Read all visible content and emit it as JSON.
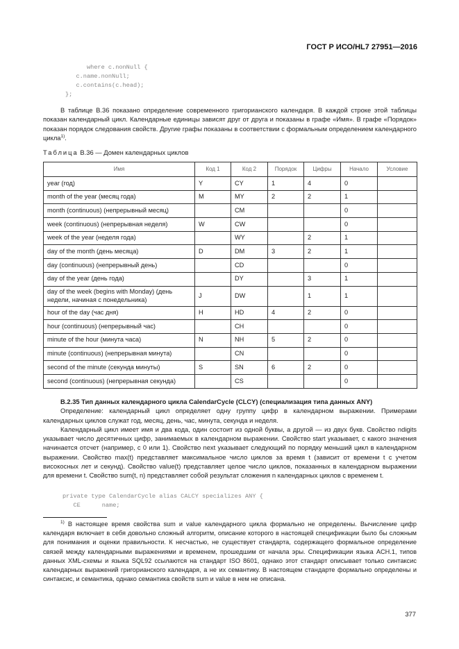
{
  "header": {
    "standard": "ГОСТ Р ИСО/HL7 27951—2016"
  },
  "code_top": "      where c.nonNull {\n   c.name.nonNull;\n   c.contains(c.head);\n};",
  "intro": {
    "text": "В таблице В.36 показано определение современного григорианского календаря. В каждой строке этой таблицы показан календарный цикл. Календарные единицы зависят друг от друга и показаны в графе «Имя». В графе «Порядок» показан порядок следования свойств. Другие графы показаны в соответствии с формальным определением календарного цикла",
    "footnote_ref": "1)"
  },
  "table": {
    "caption_label": "Таблица",
    "caption_text": "В.36 — Домен календарных циклов",
    "columns": [
      "Имя",
      "Код 1",
      "Код 2",
      "Порядок",
      "Цифры",
      "Начало",
      "Условие"
    ],
    "rows": [
      [
        "year  (год)",
        "Y",
        "CY",
        "1",
        "4",
        "0",
        ""
      ],
      [
        "month of the year (месяц года)",
        "M",
        "MY",
        "2",
        "2",
        "1",
        ""
      ],
      [
        "month (continuous) (непрерывный месяц)",
        "",
        "CM",
        "",
        "",
        "0",
        ""
      ],
      [
        "week (continuous) (непрерывная неделя)",
        "W",
        "CW",
        "",
        "",
        "0",
        ""
      ],
      [
        "week of the year (неделя года)",
        "",
        "WY",
        "",
        "2",
        "1",
        ""
      ],
      [
        "day of the month (день месяца)",
        "D",
        "DM",
        "3",
        "2",
        "1",
        ""
      ],
      [
        "day (continuous) (непрерывный день)",
        "",
        "CD",
        "",
        "",
        "0",
        ""
      ],
      [
        "day of the year (день года)",
        "",
        "DY",
        "",
        "3",
        "1",
        ""
      ],
      [
        "day of the week (begins with Monday) (день недели, начиная с понедельника)",
        "J",
        "DW",
        "",
        "1",
        "1",
        ""
      ],
      [
        "hour of the day (час дня)",
        "H",
        "HD",
        "4",
        "2",
        "0",
        ""
      ],
      [
        "hour (continuous) (непрерывный час)",
        "",
        "CH",
        "",
        "",
        "0",
        ""
      ],
      [
        "minute of the hour (минута часа)",
        "N",
        "NH",
        "5",
        "2",
        "0",
        ""
      ],
      [
        "minute (continuous) (непрерывная минута)",
        "",
        "CN",
        "",
        "",
        "0",
        ""
      ],
      [
        "second of the minute (секунда минуты)",
        "S",
        "SN",
        "6",
        "2",
        "0",
        ""
      ],
      [
        "second (continuous) (непрерывная секунда)",
        "",
        "CS",
        "",
        "",
        "0",
        ""
      ]
    ]
  },
  "section": {
    "title": "B.2.35 Тип данных календарного цикла CalendarCycle (CLCY) (специализация типа данных ANY)",
    "para1": "Определение: календарный цикл определяет одну группу цифр в календарном выражении. Примерами календарных циклов служат год, месяц, день, час, минута, секунда и неделя.",
    "para2": "Календарный цикл имеет имя и два кода, один состоит из одной буквы, а другой — из двух букв. Свойство ndigits указывает число десятичных цифр, занимаемых в календарном выражении. Свойство start указывает, с какого значения начинается отсчет (например, с 0 или 1). Свойство next указывает следующий по порядку меньший цикл в календарном выражении. Свойство max(t) представляет максимальное число циклов за время t (зависит от времени t с учетом високосных лет и секунд). Свойство value(t) представляет целое число циклов, показанных в календарном выражении для времени t. Свойство sum(t, n) представляет собой результат сложения n календарных циклов с временем t."
  },
  "code_bottom": "private type CalendarCycle alias CALCY specializes ANY {\n   CE      name;",
  "footnote": {
    "marker": "1)",
    "text": " В настоящее время свойства sum и value календарного цикла формально не определены. Вычисление цифр календаря включает в себя довольно сложный алгоритм, описание которого в настоящей спецификации было бы сложным для понимания и оценки правильности. К несчастью, не существует стандарта, содержащего формальное определение связей между календарными выражениями и временем, прошедшим от начала эры. Спецификации языка ACH.1, типов данных XML-схемы и языка SQL92 ссылаются на стандарт ISO 8601, однако этот стандарт описывает только синтаксис календарных выражений григорианского календаря, а не их семантику. В настоящем стандарте формально определены и синтаксис, и семантика, однако семантика свойств sum и value в нем не описана."
  },
  "page_number": "377"
}
